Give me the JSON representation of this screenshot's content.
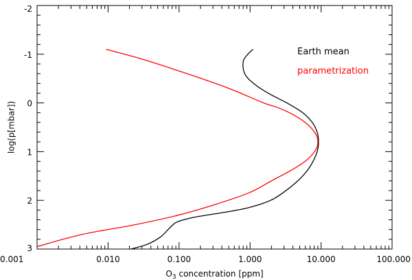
{
  "chart_data": {
    "type": "line",
    "xlabel": "O₃ concentration [ppm]",
    "xlabel_parts": {
      "base": "O",
      "sub": "3",
      "rest": " concentration [ppm]"
    },
    "ylabel": "log(p[mbar])",
    "xscale": "log",
    "xlim": [
      0.001,
      100
    ],
    "ylim": [
      3,
      -2
    ],
    "y_inverted": true,
    "grid": false,
    "legend_position": "top-right",
    "x_ticks": [
      {
        "value": 0.001,
        "label": "0.001"
      },
      {
        "value": 0.01,
        "label": "0.010"
      },
      {
        "value": 0.1,
        "label": "0.100"
      },
      {
        "value": 1,
        "label": "1.000"
      },
      {
        "value": 10,
        "label": "10.000"
      },
      {
        "value": 100,
        "label": "100.000"
      }
    ],
    "y_ticks": [
      {
        "value": -2,
        "label": "-2"
      },
      {
        "value": -1,
        "label": "-1"
      },
      {
        "value": 0,
        "label": "0"
      },
      {
        "value": 1,
        "label": "1"
      },
      {
        "value": 2,
        "label": "2"
      },
      {
        "value": 3,
        "label": "3"
      }
    ],
    "series": [
      {
        "name": "Earth mean",
        "color": "#000000",
        "points": [
          {
            "x": 1.1,
            "y": -1.1
          },
          {
            "x": 0.93,
            "y": -1.0
          },
          {
            "x": 0.8,
            "y": -0.85
          },
          {
            "x": 0.84,
            "y": -0.6
          },
          {
            "x": 1.12,
            "y": -0.4
          },
          {
            "x": 1.8,
            "y": -0.2
          },
          {
            "x": 3.3,
            "y": 0.0
          },
          {
            "x": 5.5,
            "y": 0.2
          },
          {
            "x": 7.5,
            "y": 0.4
          },
          {
            "x": 8.8,
            "y": 0.6
          },
          {
            "x": 9.2,
            "y": 0.8
          },
          {
            "x": 8.8,
            "y": 1.0
          },
          {
            "x": 7.7,
            "y": 1.2
          },
          {
            "x": 6.3,
            "y": 1.4
          },
          {
            "x": 4.7,
            "y": 1.6
          },
          {
            "x": 3.2,
            "y": 1.8
          },
          {
            "x": 1.95,
            "y": 2.0
          },
          {
            "x": 0.95,
            "y": 2.15
          },
          {
            "x": 0.42,
            "y": 2.25
          },
          {
            "x": 0.16,
            "y": 2.35
          },
          {
            "x": 0.092,
            "y": 2.45
          },
          {
            "x": 0.07,
            "y": 2.6
          },
          {
            "x": 0.055,
            "y": 2.75
          },
          {
            "x": 0.036,
            "y": 2.9
          },
          {
            "x": 0.021,
            "y": 3.0
          }
        ]
      },
      {
        "name": "parametrization",
        "color": "#ff0000",
        "points": [
          {
            "x": 0.0094,
            "y": -1.1
          },
          {
            "x": 0.03,
            "y": -0.9
          },
          {
            "x": 0.13,
            "y": -0.6
          },
          {
            "x": 0.5,
            "y": -0.3
          },
          {
            "x": 1.55,
            "y": 0.0
          },
          {
            "x": 2.5,
            "y": 0.1
          },
          {
            "x": 4.15,
            "y": 0.25
          },
          {
            "x": 6.55,
            "y": 0.45
          },
          {
            "x": 8.5,
            "y": 0.65
          },
          {
            "x": 9.0,
            "y": 0.8
          },
          {
            "x": 8.5,
            "y": 0.95
          },
          {
            "x": 6.55,
            "y": 1.15
          },
          {
            "x": 4.15,
            "y": 1.35
          },
          {
            "x": 2.0,
            "y": 1.6
          },
          {
            "x": 0.95,
            "y": 1.85
          },
          {
            "x": 0.3,
            "y": 2.1
          },
          {
            "x": 0.1,
            "y": 2.3
          },
          {
            "x": 0.024,
            "y": 2.5
          },
          {
            "x": 0.0043,
            "y": 2.7
          },
          {
            "x": 0.001,
            "y": 2.95
          }
        ]
      }
    ],
    "legend": [
      {
        "label": "Earth mean",
        "color": "#000000"
      },
      {
        "label": "parametrization",
        "color": "#ff0000"
      }
    ]
  }
}
